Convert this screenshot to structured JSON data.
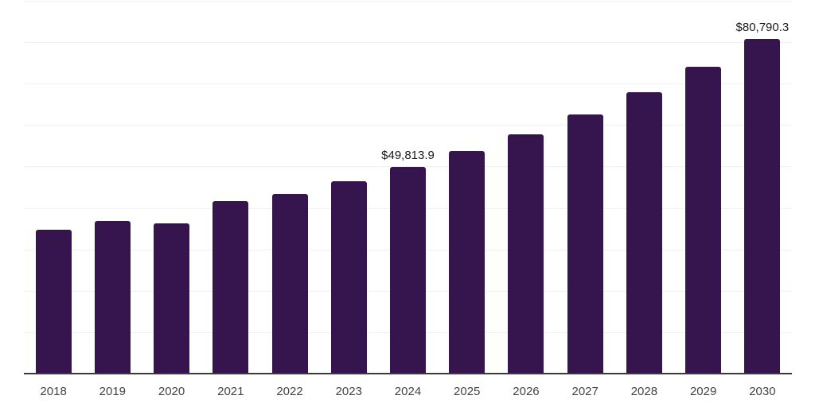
{
  "chart_data": {
    "type": "bar",
    "title": "",
    "xlabel": "",
    "ylabel": "",
    "categories": [
      "2018",
      "2019",
      "2020",
      "2021",
      "2022",
      "2023",
      "2024",
      "2025",
      "2026",
      "2027",
      "2028",
      "2029",
      "2030"
    ],
    "values": [
      34700,
      36800,
      36300,
      41600,
      43300,
      46500,
      49813.9,
      53700,
      57800,
      62500,
      68000,
      74000,
      80790.3
    ],
    "point_labels": [
      "",
      "",
      "",
      "",
      "",
      "",
      "$49,813.9",
      "",
      "",
      "",
      "",
      "",
      "$80,790.3"
    ],
    "ylim": [
      0,
      90000
    ],
    "grid_step": 10000,
    "grid": true,
    "legend_position": "none",
    "y_tick_labels_shown": false
  },
  "colors": {
    "bar": "#36154E",
    "axis": "#3A3A3A",
    "grid": "#F0F0F0",
    "tick_text": "#444444",
    "label_text": "#1A1A1A",
    "background": "#FFFFFF"
  }
}
